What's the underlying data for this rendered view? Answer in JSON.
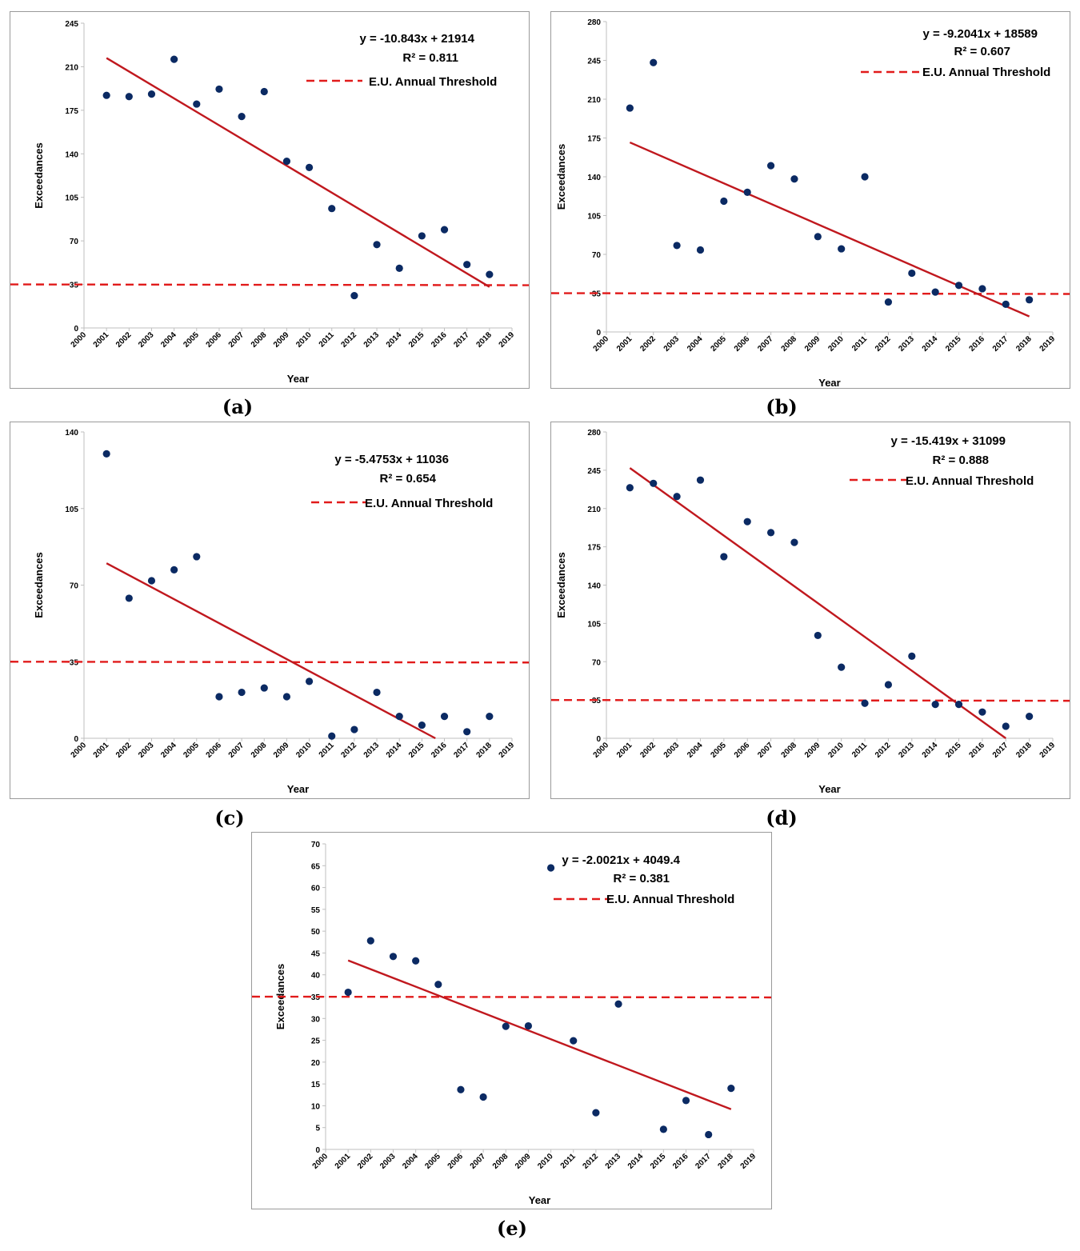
{
  "chart_data": [
    {
      "id": "a",
      "type": "scatter",
      "caption": "(a)",
      "xlabel": "Year",
      "ylabel": "Exceedances",
      "xlim": [
        2000,
        2019
      ],
      "ylim": [
        0,
        245
      ],
      "y_ticks": [
        0,
        35,
        70,
        105,
        140,
        175,
        210,
        245
      ],
      "x": [
        2001,
        2002,
        2003,
        2004,
        2005,
        2006,
        2007,
        2008,
        2009,
        2010,
        2011,
        2012,
        2013,
        2014,
        2015,
        2016,
        2017,
        2018
      ],
      "values": [
        187,
        186,
        188,
        216,
        180,
        192,
        170,
        190,
        134,
        129,
        96,
        26,
        67,
        48,
        74,
        79,
        51,
        43
      ],
      "trendline": {
        "label": "y = -10.843x + 21914",
        "r2_label": "R² = 0.811",
        "x": [
          2001,
          2018
        ],
        "y": [
          217,
          33
        ]
      },
      "threshold": {
        "label": "E.U. Annual Threshold",
        "value": 35
      }
    },
    {
      "id": "b",
      "type": "scatter",
      "caption": "(b)",
      "xlabel": "Year",
      "ylabel": "Exceedances",
      "xlim": [
        2000,
        2019
      ],
      "ylim": [
        0,
        280
      ],
      "y_ticks": [
        0,
        35,
        70,
        105,
        140,
        175,
        210,
        245,
        280
      ],
      "x": [
        2001,
        2002,
        2003,
        2004,
        2005,
        2006,
        2007,
        2008,
        2009,
        2010,
        2011,
        2012,
        2013,
        2014,
        2015,
        2016,
        2017,
        2018
      ],
      "values": [
        202,
        243,
        78,
        74,
        118,
        126,
        150,
        138,
        86,
        75,
        140,
        27,
        53,
        36,
        42,
        39,
        25,
        29
      ],
      "trendline": {
        "label": "y = -9.2041x + 18589",
        "r2_label": "R² = 0.607",
        "x": [
          2001,
          2018
        ],
        "y": [
          171,
          14
        ]
      },
      "threshold": {
        "label": "E.U. Annual Threshold",
        "value": 35
      }
    },
    {
      "id": "c",
      "type": "scatter",
      "caption": "(c)",
      "xlabel": "Year",
      "ylabel": "Exceedances",
      "xlim": [
        2000,
        2019
      ],
      "ylim": [
        0,
        140
      ],
      "y_ticks": [
        0,
        35,
        70,
        105,
        140
      ],
      "x": [
        2001,
        2002,
        2003,
        2004,
        2005,
        2006,
        2007,
        2008,
        2009,
        2010,
        2011,
        2012,
        2013,
        2014,
        2015,
        2016,
        2017,
        2018
      ],
      "values": [
        130,
        64,
        72,
        77,
        83,
        19,
        21,
        23,
        19,
        26,
        1,
        4,
        21,
        10,
        6,
        10,
        3,
        10
      ],
      "trendline": {
        "label": "y = -5.4753x + 11036",
        "r2_label": "R² = 0.654",
        "x": [
          2001,
          2015.6
        ],
        "y": [
          80,
          0
        ]
      },
      "threshold": {
        "label": "E.U. Annual Threshold",
        "value": 35
      }
    },
    {
      "id": "d",
      "type": "scatter",
      "caption": "(d)",
      "xlabel": "Year",
      "ylabel": "Exceedances",
      "xlim": [
        2000,
        2019
      ],
      "ylim": [
        0,
        280
      ],
      "y_ticks": [
        0,
        35,
        70,
        105,
        140,
        175,
        210,
        245,
        280
      ],
      "x": [
        2001,
        2002,
        2003,
        2004,
        2005,
        2006,
        2007,
        2008,
        2009,
        2010,
        2011,
        2012,
        2013,
        2014,
        2015,
        2016,
        2017,
        2018
      ],
      "values": [
        229,
        233,
        221,
        236,
        166,
        198,
        188,
        179,
        94,
        65,
        32,
        49,
        75,
        31,
        31,
        24,
        11,
        20
      ],
      "trendline": {
        "label": "y = -15.419x + 31099",
        "r2_label": "R² = 0.888",
        "x": [
          2001,
          2017
        ],
        "y": [
          247,
          0
        ]
      },
      "threshold": {
        "label": "E.U. Annual Threshold",
        "value": 35
      }
    },
    {
      "id": "e",
      "type": "scatter",
      "caption": "(e)",
      "xlabel": "Year",
      "ylabel": "Exceedances",
      "xlim": [
        2000,
        2019
      ],
      "ylim": [
        0,
        70
      ],
      "y_ticks": [
        0,
        5,
        10,
        15,
        20,
        25,
        30,
        35,
        40,
        45,
        50,
        55,
        60,
        65,
        70
      ],
      "x": [
        2001,
        2002,
        2003,
        2004,
        2005,
        2006,
        2007,
        2008,
        2009,
        2010,
        2011,
        2012,
        2013,
        2015,
        2016,
        2017,
        2018
      ],
      "values": [
        36,
        47.8,
        44.2,
        43.2,
        37.8,
        13.7,
        12,
        28.2,
        28.3,
        64.5,
        24.9,
        8.4,
        33.3,
        4.6,
        11.2,
        3.4,
        14
      ],
      "trendline": {
        "label": "y = -2.0021x + 4049.4",
        "r2_label": "R² = 0.381",
        "x": [
          2001,
          2018
        ],
        "y": [
          43.3,
          9.2
        ]
      },
      "threshold": {
        "label": "E.U. Annual Threshold",
        "value": 35
      }
    }
  ],
  "colors": {
    "marker": "#0b2a63",
    "trend": "#c0181e",
    "threshold": "#e11b1b",
    "axis": "#bfbfbf"
  }
}
